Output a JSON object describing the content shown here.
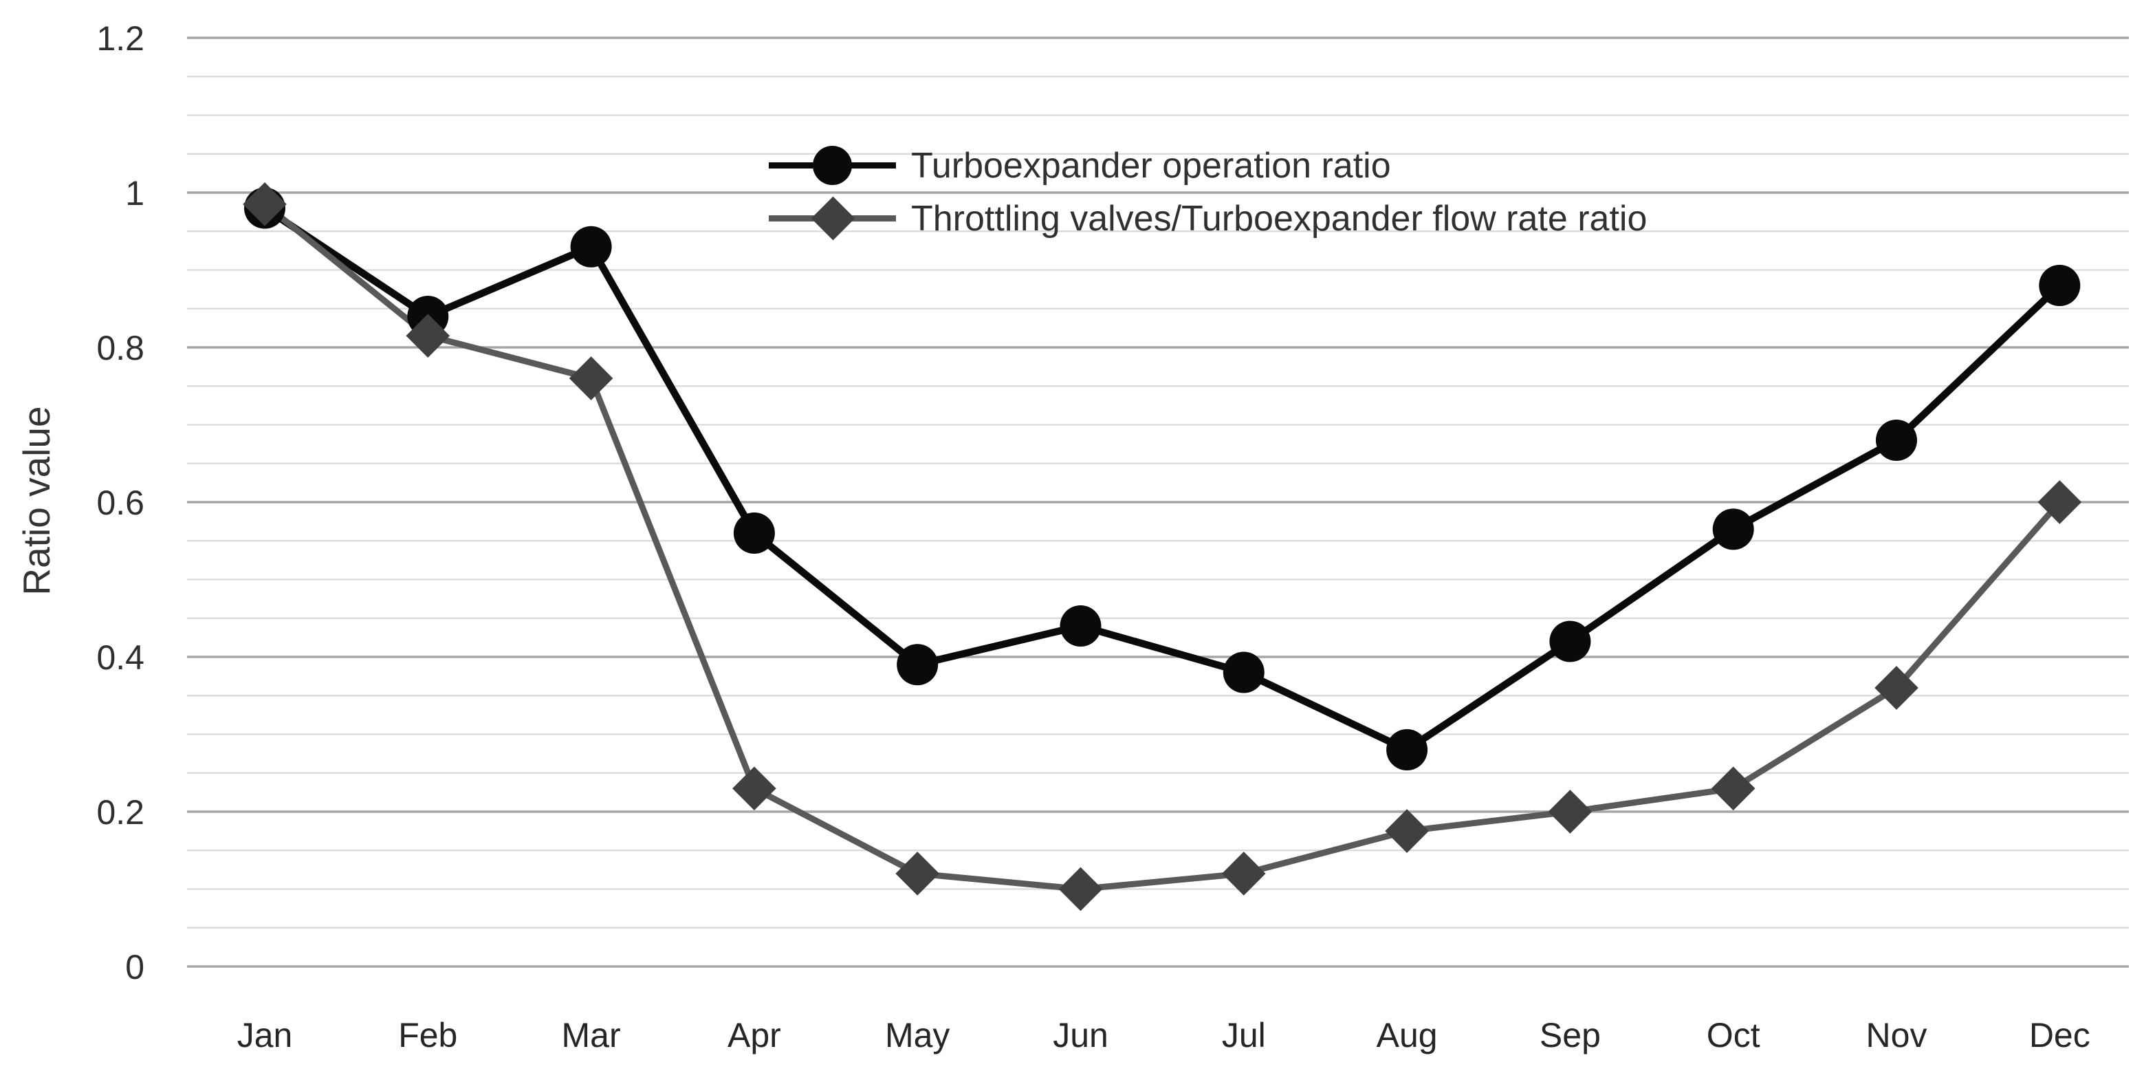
{
  "figure": {
    "background": "#ffffff"
  },
  "colors": {
    "minor_gridline": "#d9d9d9",
    "major_gridline": "#a6a6a6",
    "series1_line": "#0a0a0a",
    "series1_marker": "#0a0a0a",
    "series2_line": "#595959",
    "series2_marker": "#404040",
    "tick_text": "#2e2e2e",
    "label_text": "#333333"
  },
  "chart_data": {
    "type": "line",
    "title": "",
    "xlabel": "",
    "ylabel": "Ratio value",
    "ylim": [
      0,
      1.2
    ],
    "y_major_step": 0.2,
    "y_minor_step": 0.05,
    "y_tick_labels": [
      "1.2",
      "1",
      "0.8",
      "0.6",
      "0.4",
      "0.2",
      "0"
    ],
    "y_tick_values": [
      1.2,
      1.0,
      0.8,
      0.6,
      0.4,
      0.2,
      0
    ],
    "grid": "horizontal, minor every 0.05 (light), major every 0.2 (darker)",
    "legend_position": "inside top center, two stacked rows",
    "categories": [
      "Jan",
      "Feb",
      "Mar",
      "Apr",
      "May",
      "Jun",
      "Jul",
      "Aug",
      "Sep",
      "Oct",
      "Nov",
      "Dec"
    ],
    "series": [
      {
        "name": "Turboexpander operation ratio",
        "marker": "circle",
        "values": [
          0.98,
          0.84,
          0.93,
          0.56,
          0.39,
          0.44,
          0.38,
          0.28,
          0.42,
          0.565,
          0.68,
          0.88
        ]
      },
      {
        "name": "Throttling valves/Turboexpander flow rate ratio",
        "marker": "diamond",
        "values": [
          0.985,
          0.815,
          0.76,
          0.23,
          0.12,
          0.1,
          0.12,
          0.175,
          0.2,
          0.23,
          0.36,
          0.6
        ]
      }
    ]
  }
}
